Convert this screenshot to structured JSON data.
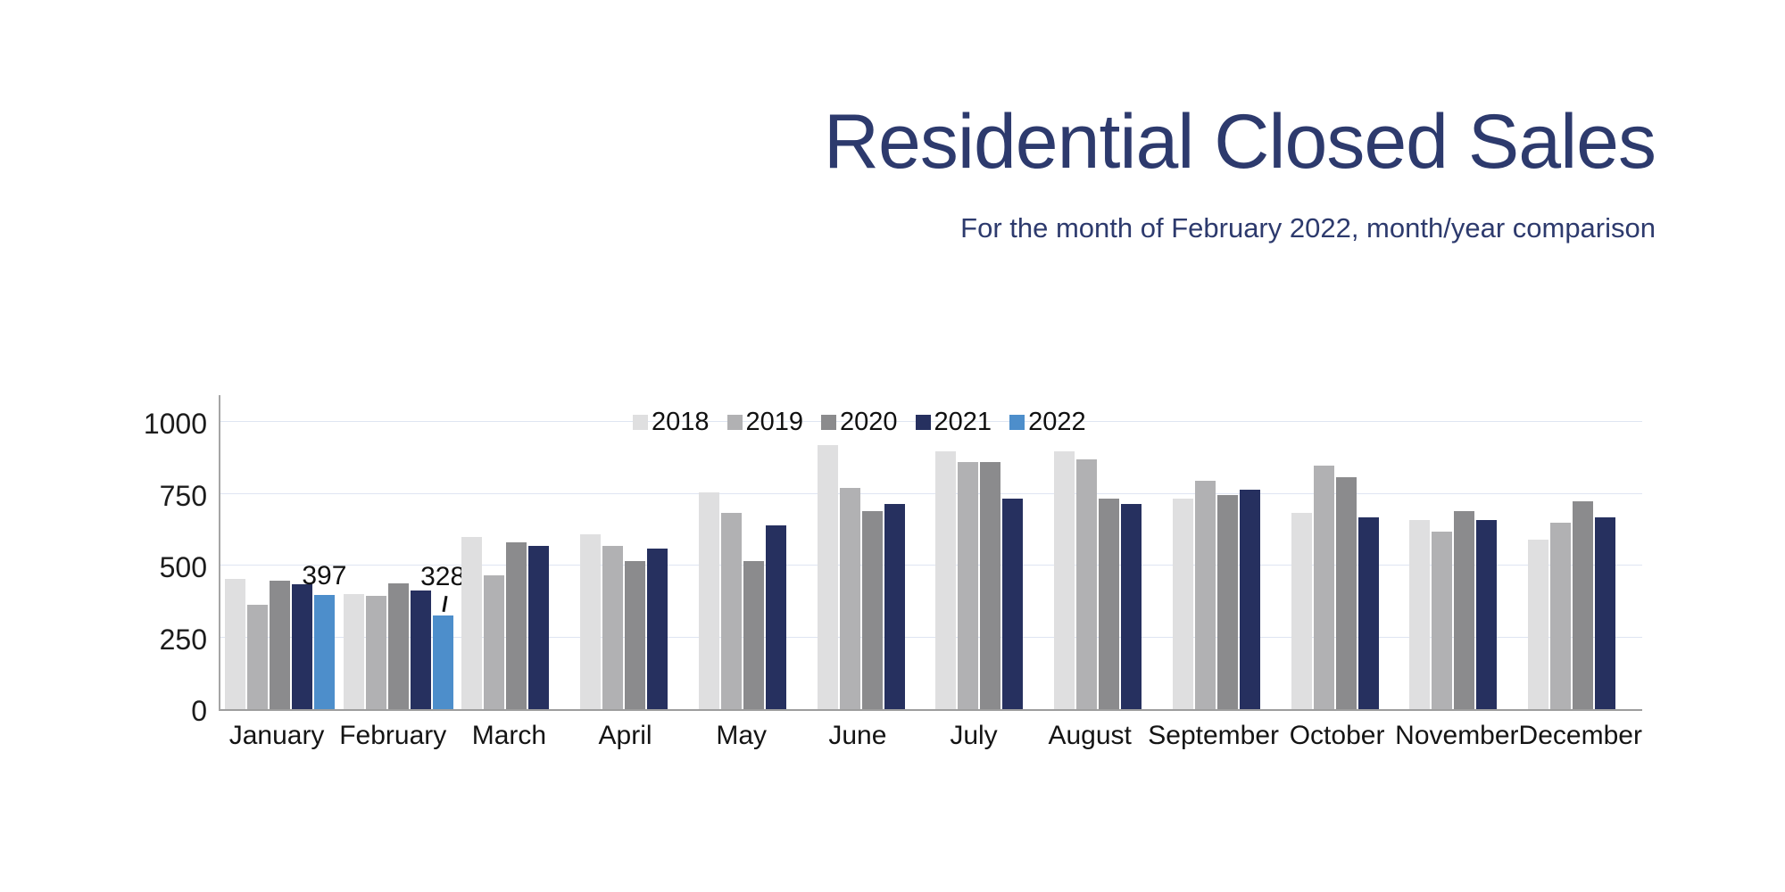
{
  "title": "Residential Closed Sales",
  "subtitle": "For the month of February 2022, month/year comparison",
  "colors": {
    "title_navy": "#2d3a6d",
    "gridline": "#dfe5f2",
    "axis_line": "#a5a5a5",
    "label_text": "#141414"
  },
  "chart_data": {
    "type": "bar",
    "title": "Residential Closed Sales",
    "subtitle": "For the month of February 2022, month/year comparison",
    "categories": [
      "January",
      "February",
      "March",
      "April",
      "May",
      "June",
      "July",
      "August",
      "September",
      "October",
      "November",
      "December"
    ],
    "series": [
      {
        "name": "2018",
        "color": "#dfdfe0",
        "values": [
          455,
          400,
          600,
          610,
          755,
          920,
          900,
          898,
          735,
          685,
          660,
          590
        ]
      },
      {
        "name": "2019",
        "color": "#b1b1b3",
        "values": [
          365,
          395,
          465,
          570,
          685,
          770,
          860,
          870,
          795,
          850,
          620,
          650
        ]
      },
      {
        "name": "2020",
        "color": "#8b8b8d",
        "values": [
          447,
          437,
          580,
          515,
          515,
          690,
          860,
          735,
          745,
          810,
          690,
          725
        ]
      },
      {
        "name": "2021",
        "color": "#26305f",
        "values": [
          435,
          415,
          570,
          560,
          640,
          715,
          735,
          715,
          765,
          670,
          660,
          670
        ]
      },
      {
        "name": "2022",
        "color": "#4d8ecb",
        "values": [
          397,
          328,
          null,
          null,
          null,
          null,
          null,
          null,
          null,
          null,
          null,
          null
        ]
      }
    ],
    "annotations": [
      {
        "series": "2022",
        "category": "January",
        "label": "397",
        "leader": false
      },
      {
        "series": "2022",
        "category": "February",
        "label": "328",
        "leader": true
      }
    ],
    "yticks": [
      0,
      250,
      500,
      750,
      1000
    ],
    "ylim": [
      0,
      1100
    ],
    "xlabel": "",
    "ylabel": "",
    "grid": "horizontal",
    "legend_position": "top-center"
  }
}
